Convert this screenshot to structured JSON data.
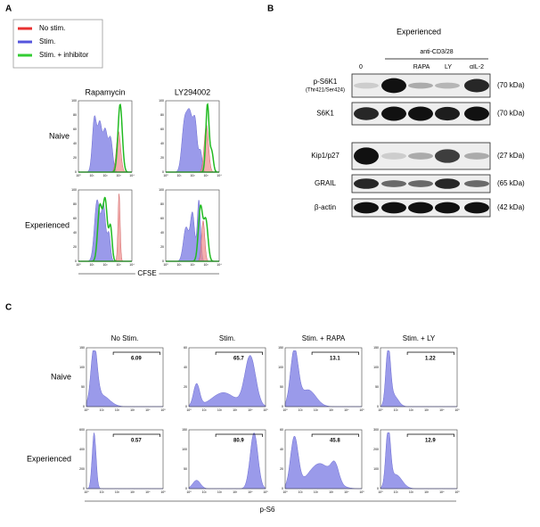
{
  "panel_a": {
    "label": "A",
    "legend": [
      "No stim.",
      "Stim.",
      "Stim. + inhibitor"
    ],
    "columns": [
      "Rapamycin",
      "LY294002"
    ],
    "rows": [
      "Naive",
      "Experienced"
    ],
    "yticks": [
      "0",
      "20",
      "40",
      "60",
      "80",
      "100"
    ],
    "xticks": [
      "10⁰",
      "10¹",
      "10²",
      "10³",
      "10⁴"
    ],
    "xlabel": "CFSE"
  },
  "panel_b": {
    "label": "B",
    "title": "Experienced",
    "bracket": "anti-CD3/28",
    "lanes": [
      "0",
      "RAPA",
      "LY",
      "αIL-2"
    ],
    "blots": [
      {
        "label": "p-S6K1",
        "sublabel": "(Thr421/Ser424)",
        "size": "(70 kDa)"
      },
      {
        "label": "S6K1",
        "size": "(70 kDa)"
      },
      {
        "label": "Kip1/p27",
        "size": "(27 kDa)"
      },
      {
        "label": "GRAIL",
        "size": "(65 kDa)"
      },
      {
        "label": "β-actin",
        "size": "(42 kDa)"
      }
    ]
  },
  "panel_c": {
    "label": "C",
    "columns": [
      "No Stim.",
      "Stim.",
      "Stim. + RAPA",
      "Stim. + LY"
    ],
    "rows": [
      "Naive",
      "Experienced"
    ],
    "gates": [
      [
        6.09,
        65.7,
        13.1,
        1.22
      ],
      [
        0.57,
        80.9,
        45.8,
        12.9
      ]
    ],
    "yticks": [
      [
        [
          "0",
          "50",
          "100",
          "150"
        ],
        [
          "0",
          "20",
          "40",
          "60"
        ],
        [
          "0",
          "50",
          "100",
          "150"
        ],
        [
          "0",
          "50",
          "100",
          "150"
        ]
      ],
      [
        [
          "0",
          "200",
          "400",
          "600"
        ],
        [
          "0",
          "50",
          "100",
          "150"
        ],
        [
          "0",
          "20",
          "40",
          "60"
        ],
        [
          "0",
          "100",
          "200",
          "300"
        ]
      ]
    ],
    "xticks": [
      "10⁰",
      "10¹",
      "10²",
      "10³",
      "10⁴",
      "10⁵"
    ],
    "xlabel": "p-S6"
  }
}
